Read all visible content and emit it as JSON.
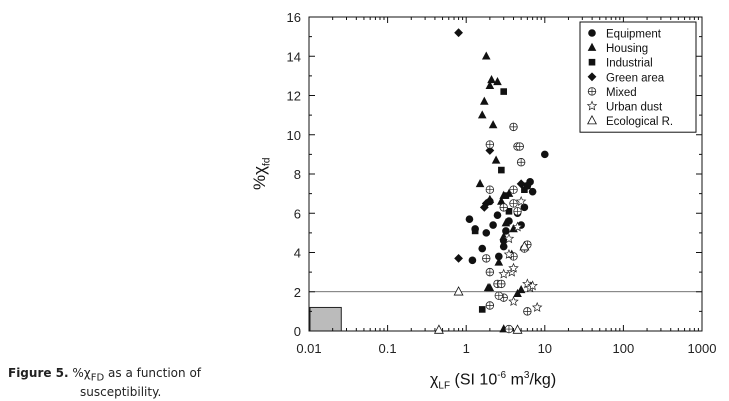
{
  "caption": {
    "lead": "Figure 5.",
    "body_main": " %χ",
    "body_sub": "FD",
    "body_rest": " as a function of",
    "line2": "susceptibility."
  },
  "axis_text": {
    "y_main": "%χ",
    "y_sub": "fd",
    "x_main": "χ",
    "x_sub": "LF",
    "x_unit_a": " (SI 10",
    "x_exp1": "-6",
    "x_unit_b": " m",
    "x_exp2": "3",
    "x_unit_c": "/kg)"
  },
  "chart_data": {
    "type": "scatter",
    "xscale": "log",
    "xlim": [
      0.01,
      1000
    ],
    "ylim": [
      0,
      16
    ],
    "xticks": [
      "0.01",
      "0.1",
      "1",
      "10",
      "100",
      "1000"
    ],
    "yticks": [
      "0",
      "2",
      "4",
      "6",
      "8",
      "10",
      "12",
      "14",
      "16"
    ],
    "legend_position": "top-right",
    "reference_line_y": 2,
    "shaded_box": {
      "x": [
        0.01,
        0.025
      ],
      "y": [
        0,
        1.2
      ]
    },
    "series": [
      {
        "name": "Equipment",
        "marker": "circle",
        "points": [
          [
            1.1,
            5.7
          ],
          [
            1.2,
            3.6
          ],
          [
            1.6,
            4.2
          ],
          [
            1.8,
            5.0
          ],
          [
            2.0,
            6.6
          ],
          [
            2.5,
            5.9
          ],
          [
            2.6,
            3.8
          ],
          [
            3.0,
            4.6
          ],
          [
            3.2,
            5.1
          ],
          [
            3.5,
            5.6
          ],
          [
            4.5,
            6.0
          ],
          [
            5.0,
            5.4
          ],
          [
            5.5,
            6.3
          ],
          [
            6.0,
            7.4
          ],
          [
            6.5,
            7.6
          ],
          [
            7.0,
            7.1
          ],
          [
            10.0,
            9.0
          ],
          [
            1.3,
            5.2
          ],
          [
            2.2,
            5.4
          ],
          [
            3.0,
            4.3
          ]
        ]
      },
      {
        "name": "Housing",
        "marker": "triangle",
        "points": [
          [
            1.5,
            7.5
          ],
          [
            1.6,
            11.0
          ],
          [
            1.7,
            11.7
          ],
          [
            1.8,
            14.0
          ],
          [
            2.0,
            12.5
          ],
          [
            2.1,
            12.8
          ],
          [
            2.2,
            10.5
          ],
          [
            2.4,
            8.7
          ],
          [
            2.5,
            12.7
          ],
          [
            2.8,
            6.6
          ],
          [
            3.0,
            6.9
          ],
          [
            3.0,
            4.8
          ],
          [
            3.2,
            5.5
          ],
          [
            2.6,
            3.5
          ],
          [
            3.8,
            3.9
          ],
          [
            4.0,
            5.2
          ],
          [
            4.5,
            1.9
          ],
          [
            5.0,
            2.1
          ],
          [
            1.9,
            2.2
          ],
          [
            2.0,
            2.2
          ],
          [
            3.0,
            0.1
          ],
          [
            2.0,
            6.7
          ],
          [
            3.5,
            7.0
          ]
        ]
      },
      {
        "name": "Industrial",
        "marker": "square",
        "points": [
          [
            1.3,
            5.1
          ],
          [
            1.6,
            1.1
          ],
          [
            2.8,
            8.2
          ],
          [
            3.0,
            12.2
          ],
          [
            3.2,
            6.9
          ],
          [
            3.5,
            6.1
          ],
          [
            5.5,
            7.2
          ],
          [
            6.0,
            7.4
          ]
        ]
      },
      {
        "name": "Green area",
        "marker": "diamond",
        "points": [
          [
            0.8,
            15.2
          ],
          [
            0.8,
            3.7
          ],
          [
            2.0,
            9.2
          ],
          [
            1.8,
            6.5
          ],
          [
            5.0,
            7.5
          ],
          [
            6.5,
            2.3
          ],
          [
            1.7,
            6.3
          ]
        ]
      },
      {
        "name": "Mixed",
        "marker": "circle-plus",
        "points": [
          [
            4.0,
            10.4
          ],
          [
            4.5,
            9.4
          ],
          [
            4.8,
            9.4
          ],
          [
            5.0,
            8.6
          ],
          [
            2.0,
            9.5
          ],
          [
            2.0,
            7.2
          ],
          [
            3.0,
            6.3
          ],
          [
            4.0,
            6.5
          ],
          [
            4.5,
            6.1
          ],
          [
            5.5,
            4.2
          ],
          [
            6.0,
            4.4
          ],
          [
            1.8,
            3.7
          ],
          [
            2.0,
            3.0
          ],
          [
            2.5,
            2.4
          ],
          [
            3.0,
            1.7
          ],
          [
            2.6,
            1.8
          ],
          [
            2.8,
            2.4
          ],
          [
            4.0,
            3.8
          ],
          [
            6.0,
            1.0
          ],
          [
            3.5,
            0.1
          ],
          [
            2.0,
            1.3
          ],
          [
            4.0,
            7.2
          ]
        ]
      },
      {
        "name": "Urban dust",
        "marker": "star",
        "points": [
          [
            3.5,
            4.7
          ],
          [
            3.8,
            3.0
          ],
          [
            4.0,
            3.2
          ],
          [
            4.5,
            5.3
          ],
          [
            5.0,
            6.6
          ],
          [
            4.0,
            1.5
          ],
          [
            6.0,
            2.4
          ],
          [
            6.5,
            2.2
          ],
          [
            8.0,
            1.2
          ],
          [
            3.5,
            3.9
          ],
          [
            7.0,
            2.3
          ],
          [
            3.0,
            2.9
          ]
        ]
      },
      {
        "name": "Ecological R.",
        "marker": "triangle-open",
        "points": [
          [
            0.8,
            2.0
          ],
          [
            0.45,
            0.05
          ],
          [
            4.5,
            0.05
          ],
          [
            5.5,
            4.3
          ]
        ]
      }
    ]
  }
}
